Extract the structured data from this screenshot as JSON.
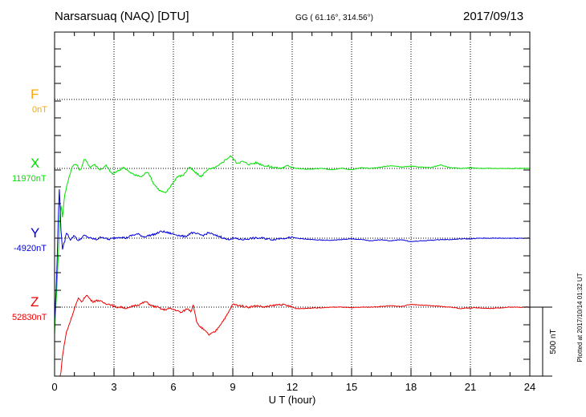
{
  "header": {
    "station": "Narsarsuaq (NAQ)  [DTU]",
    "coords": "GG ( 61.16°, 314.56°)",
    "date": "2017/09/13"
  },
  "footer": {
    "plotted": "Plotted at 2017/10/14 01:32 UT",
    "scale": "500 nT"
  },
  "colors": {
    "F": "#ffa500",
    "X": "#00e000",
    "Y": "#0000dd",
    "Z": "#ee0000"
  },
  "chart_data": {
    "type": "line",
    "xlabel": "U T (hour)",
    "xlim": [
      0,
      24
    ],
    "xticks": [
      "0",
      "3",
      "6",
      "9",
      "12",
      "15",
      "18",
      "21",
      "24"
    ],
    "scale_bar_nT": 500,
    "series": [
      {
        "name": "F",
        "baseline": "0nT",
        "x": [],
        "y": []
      },
      {
        "name": "X",
        "baseline": "11970nT",
        "x": [
          0,
          0.1,
          0.2,
          0.3,
          0.4,
          0.5,
          0.7,
          0.9,
          1.1,
          1.3,
          1.5,
          1.8,
          2.0,
          2.3,
          2.6,
          2.9,
          3.2,
          3.5,
          3.8,
          4.1,
          4.4,
          4.7,
          5.0,
          5.3,
          5.6,
          5.9,
          6.2,
          6.5,
          6.8,
          7.1,
          7.4,
          7.7,
          8.0,
          8.3,
          8.6,
          8.9,
          9.2,
          9.5,
          9.8,
          10.2,
          10.6,
          11.0,
          11.4,
          11.8,
          12.2,
          12.6,
          13.0,
          13.5,
          14.0,
          14.5,
          15.0,
          15.5,
          16.0,
          16.5,
          17.0,
          17.5,
          18.0,
          18.5,
          19.0,
          19.5,
          20.0,
          20.5,
          21.0,
          21.5,
          22.0,
          22.5,
          23.0,
          23.5,
          24.0
        ],
        "y": [
          -1200,
          -900,
          -600,
          -250,
          -350,
          -200,
          -80,
          20,
          30,
          -20,
          70,
          10,
          30,
          -10,
          20,
          -40,
          -20,
          10,
          -30,
          -50,
          -60,
          -20,
          -110,
          -160,
          -180,
          -120,
          -60,
          -50,
          10,
          -30,
          -60,
          -10,
          0,
          20,
          60,
          90,
          40,
          50,
          30,
          40,
          20,
          10,
          0,
          20,
          0,
          -5,
          -5,
          0,
          -10,
          0,
          -10,
          5,
          0,
          10,
          20,
          10,
          15,
          10,
          5,
          25,
          5,
          0,
          5,
          0,
          0,
          0,
          0,
          0,
          0
        ]
      },
      {
        "name": "Y",
        "baseline": "-4920nT",
        "x": [
          0,
          0.1,
          0.2,
          0.25,
          0.3,
          0.4,
          0.5,
          0.6,
          0.8,
          1.0,
          1.2,
          1.5,
          1.8,
          2.1,
          2.4,
          2.7,
          3.0,
          3.3,
          3.6,
          3.9,
          4.2,
          4.5,
          4.8,
          5.1,
          5.4,
          5.7,
          6.0,
          6.3,
          6.6,
          6.9,
          7.2,
          7.5,
          7.8,
          8.1,
          8.4,
          8.7,
          9.0,
          9.5,
          10.0,
          10.5,
          11.0,
          11.5,
          12.0,
          12.5,
          13.0,
          13.5,
          14.0,
          14.5,
          15.0,
          15.5,
          16.0,
          16.5,
          17.0,
          17.5,
          18.0,
          18.5,
          19.0,
          19.5,
          20.0,
          20.5,
          21.0,
          21.5,
          22.0,
          22.5,
          23.0,
          23.5,
          24.0
        ],
        "y": [
          -600,
          -300,
          200,
          400,
          100,
          -80,
          -30,
          40,
          -10,
          20,
          -20,
          20,
          0,
          -10,
          10,
          -10,
          0,
          10,
          0,
          20,
          30,
          10,
          20,
          30,
          50,
          40,
          30,
          20,
          10,
          40,
          30,
          20,
          40,
          20,
          10,
          -10,
          0,
          -10,
          0,
          0,
          -10,
          0,
          5,
          -5,
          -10,
          -15,
          -15,
          -10,
          -5,
          -10,
          -20,
          -10,
          -20,
          -10,
          -25,
          -20,
          -15,
          -10,
          -10,
          -5,
          -5,
          0,
          0,
          0,
          0,
          0,
          0
        ]
      },
      {
        "name": "Z",
        "baseline": "52830nT",
        "x": [
          0,
          0.1,
          0.2,
          0.3,
          0.4,
          0.6,
          0.8,
          1.0,
          1.2,
          1.4,
          1.6,
          1.9,
          2.2,
          2.5,
          2.8,
          3.1,
          3.4,
          3.7,
          4.0,
          4.3,
          4.6,
          4.9,
          5.2,
          5.5,
          5.8,
          6.1,
          6.4,
          6.7,
          6.9,
          7.0,
          7.2,
          7.5,
          7.8,
          8.1,
          8.4,
          8.7,
          9.0,
          9.4,
          9.8,
          10.2,
          10.6,
          11.0,
          11.4,
          11.8,
          12.2,
          12.6,
          13.0,
          13.5,
          14.0,
          14.5,
          15.0,
          15.5,
          16.0,
          16.5,
          17.0,
          17.5,
          18.0,
          18.5,
          19.0,
          19.5,
          20.0,
          20.5,
          21.0,
          21.5,
          22.0,
          22.5,
          23.0,
          23.5,
          24.0
        ],
        "y": [
          -900,
          -1300,
          -900,
          -500,
          -350,
          -180,
          -100,
          -10,
          60,
          40,
          90,
          40,
          50,
          30,
          20,
          0,
          0,
          -10,
          10,
          20,
          40,
          10,
          0,
          -20,
          -10,
          -20,
          -40,
          -10,
          -30,
          20,
          -120,
          -160,
          -200,
          -180,
          -120,
          -60,
          20,
          10,
          0,
          10,
          0,
          10,
          20,
          10,
          -10,
          -10,
          -5,
          -5,
          0,
          0,
          -5,
          0,
          0,
          5,
          10,
          5,
          20,
          15,
          10,
          5,
          0,
          -10,
          -5,
          -5,
          -10,
          -5,
          0,
          0,
          0
        ]
      }
    ]
  }
}
